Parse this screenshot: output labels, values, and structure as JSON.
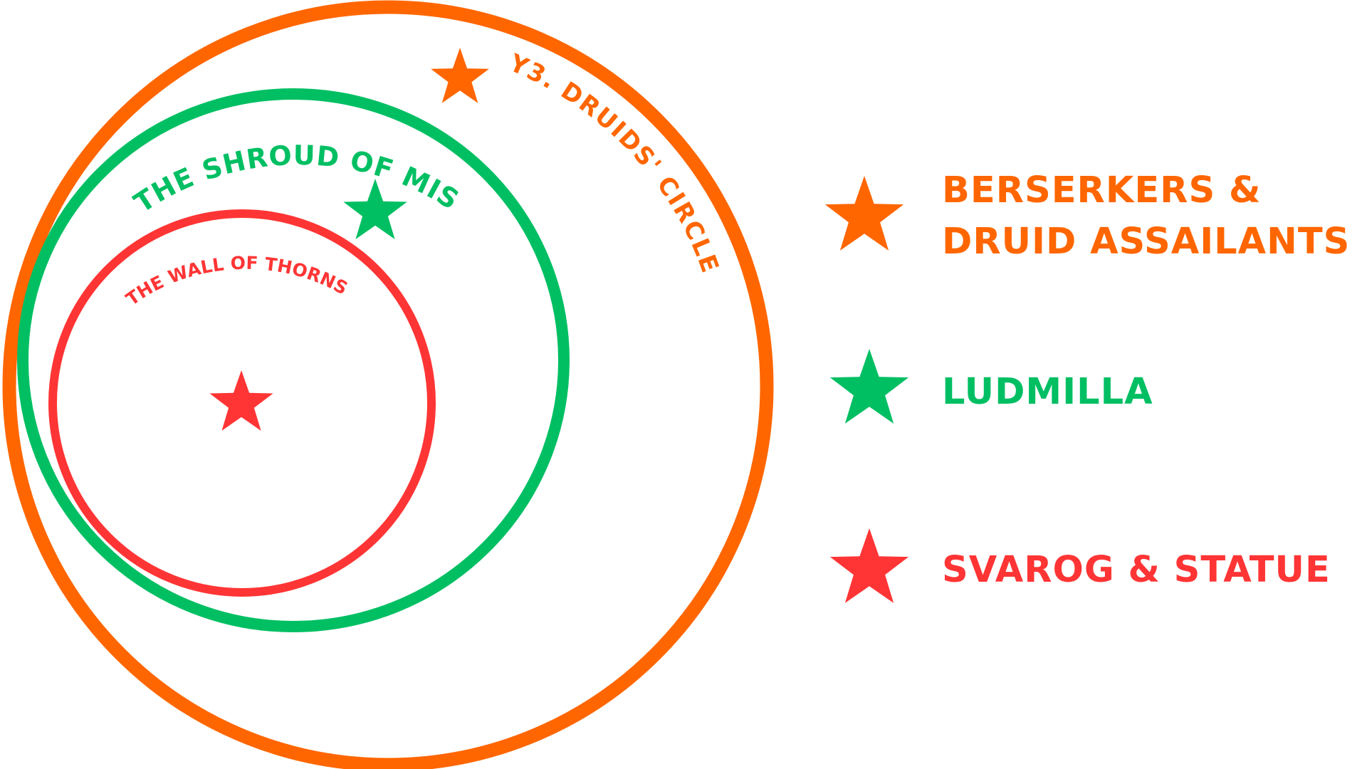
{
  "colors": {
    "orange": "#FF6600",
    "green": "#00BF63",
    "red": "#FF3535",
    "background": "#FFFFFF"
  },
  "rings": [
    {
      "id": "outer",
      "label": "Y3. DRUIDS' CIRCLE",
      "color": "#FF6600"
    },
    {
      "id": "middle",
      "label": "THE SHROUD OF MIST",
      "color": "#00BF63"
    },
    {
      "id": "inner",
      "label": "THE WALL OF THORNS",
      "color": "#FF3535"
    }
  ],
  "legend": [
    {
      "lines": [
        "BERSERKERS &",
        "DRUID ASSAILANTS"
      ],
      "color": "#FF6600",
      "icon": "star-icon"
    },
    {
      "lines": [
        "LUDMILLA"
      ],
      "color": "#00BF63",
      "icon": "star-icon"
    },
    {
      "lines": [
        "SVAROG & STATUE"
      ],
      "color": "#FF3535",
      "icon": "star-icon"
    }
  ]
}
